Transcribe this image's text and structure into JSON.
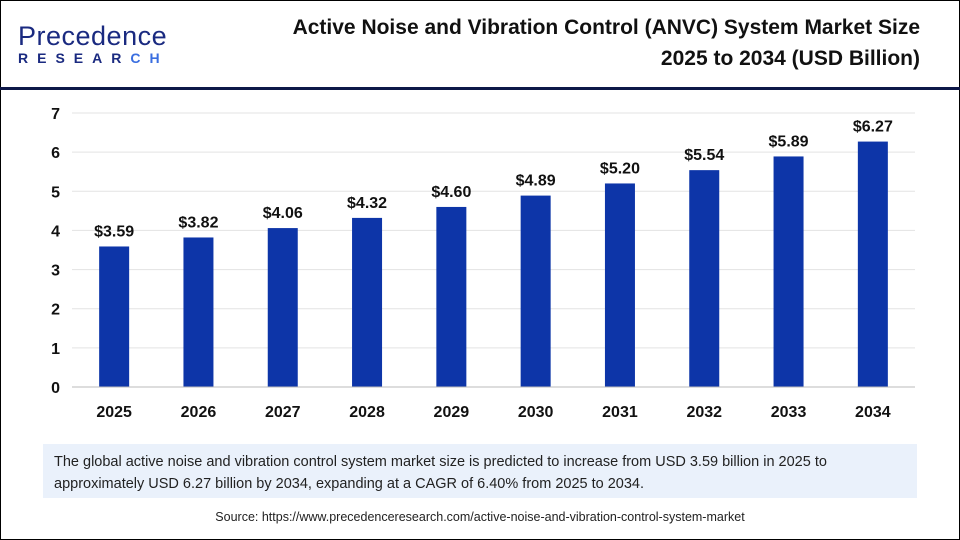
{
  "logo": {
    "main_prefix": "P",
    "main_rest": "recedence",
    "sub_prefix": "RESEAR",
    "sub_suffix": "CH"
  },
  "title_line1": "Active Noise and Vibration Control (ANVC) System Market Size",
  "title_line2": "2025 to 2034 (USD Billion)",
  "chart_data": {
    "type": "bar",
    "categories": [
      "2025",
      "2026",
      "2027",
      "2028",
      "2029",
      "2030",
      "2031",
      "2032",
      "2033",
      "2034"
    ],
    "values": [
      3.59,
      3.82,
      4.06,
      4.32,
      4.6,
      4.89,
      5.2,
      5.54,
      5.89,
      6.27
    ],
    "data_labels": [
      "$3.59",
      "$3.82",
      "$4.06",
      "$4.32",
      "$4.60",
      "$4.89",
      "$5.20",
      "$5.54",
      "$5.89",
      "$6.27"
    ],
    "yticks": [
      "0",
      "1",
      "2",
      "3",
      "4",
      "5",
      "6",
      "7"
    ],
    "ylim": [
      0,
      7
    ],
    "grid": true,
    "bar_color": "#0d35a8",
    "xlabel": "",
    "ylabel": ""
  },
  "summary": "The global active noise and vibration control system market size is predicted to increase from USD 3.59 billion in 2025 to approximately USD 6.27 billion by 2034, expanding at a CAGR of  6.40% from 2025 to 2034.",
  "source": "Source: https://www.precedenceresearch.com/active-noise-and-vibration-control-system-market"
}
